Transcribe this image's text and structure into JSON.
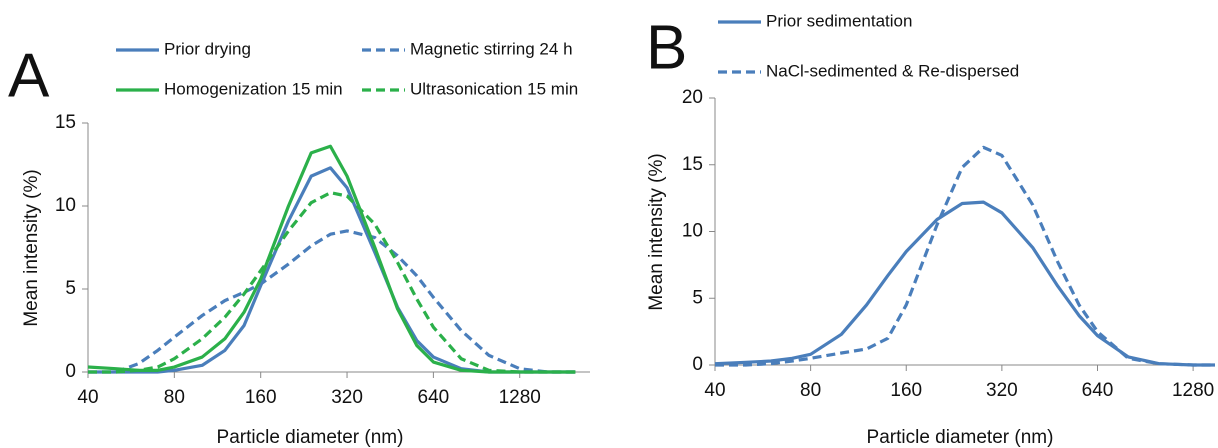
{
  "chart_data": [
    {
      "type": "line",
      "panel_label": "A",
      "x_label": "Particle diameter (nm)",
      "y_label": "Mean intensity (%)",
      "x_scale": "log",
      "xlim": [
        40,
        2250
      ],
      "xticks": [
        40,
        80,
        160,
        320,
        640,
        1280
      ],
      "ylim": [
        0,
        15
      ],
      "yticks": [
        0,
        5,
        10,
        15
      ],
      "grid": false,
      "legend_position": "top",
      "x": [
        40,
        50,
        60,
        70,
        80,
        100,
        120,
        140,
        160,
        200,
        240,
        280,
        320,
        400,
        480,
        560,
        640,
        800,
        1000,
        1280,
        1600,
        2000
      ],
      "series": [
        {
          "name": "Prior drying",
          "color": "#4a7ebb",
          "dashed": false,
          "values": [
            0,
            0,
            0,
            0,
            0.1,
            0.4,
            1.3,
            2.8,
            5.2,
            9.1,
            11.8,
            12.3,
            11.1,
            7.2,
            3.9,
            1.9,
            0.9,
            0.2,
            0,
            0,
            0,
            0
          ]
        },
        {
          "name": "Magnetic stirring 24 h",
          "color": "#4a7ebb",
          "dashed": true,
          "values": [
            0,
            0,
            0.5,
            1.3,
            2.1,
            3.4,
            4.3,
            4.8,
            5.3,
            6.5,
            7.6,
            8.3,
            8.5,
            8.1,
            7,
            5.8,
            4.5,
            2.5,
            1,
            0.2,
            0,
            0
          ]
        },
        {
          "name": "Homogenization 15 min",
          "color": "#2bb04a",
          "dashed": false,
          "values": [
            0.3,
            0.2,
            0.1,
            0.1,
            0.3,
            0.9,
            2,
            3.6,
            5.6,
            10,
            13.2,
            13.6,
            11.8,
            7.5,
            3.8,
            1.6,
            0.6,
            0.1,
            0,
            0,
            0,
            0
          ]
        },
        {
          "name": "Ultrasonication 15 min",
          "color": "#2bb04a",
          "dashed": true,
          "values": [
            0,
            0,
            0.1,
            0.3,
            0.8,
            2,
            3.3,
            4.7,
            6.1,
            8.5,
            10.2,
            10.8,
            10.6,
            8.9,
            6.6,
            4.4,
            2.7,
            0.8,
            0.1,
            0,
            0,
            0
          ]
        }
      ]
    },
    {
      "type": "line",
      "panel_label": "B",
      "x_label": "Particle diameter (nm)",
      "y_label": "Mean intensity (%)",
      "x_scale": "log",
      "xlim": [
        40,
        1500
      ],
      "xticks": [
        40,
        80,
        160,
        320,
        640,
        1280
      ],
      "ylim": [
        0,
        20
      ],
      "yticks": [
        0,
        5,
        10,
        15,
        20
      ],
      "grid": false,
      "legend_position": "top",
      "x": [
        40,
        50,
        60,
        70,
        80,
        100,
        120,
        140,
        160,
        200,
        240,
        280,
        320,
        400,
        480,
        560,
        640,
        800,
        1000,
        1280,
        1500
      ],
      "series": [
        {
          "name": "Prior sedimentation",
          "color": "#4a7ebb",
          "dashed": false,
          "values": [
            0.1,
            0.2,
            0.3,
            0.5,
            0.8,
            2.3,
            4.5,
            6.7,
            8.5,
            10.9,
            12.1,
            12.2,
            11.4,
            8.8,
            5.9,
            3.7,
            2.2,
            0.6,
            0.1,
            0,
            0
          ]
        },
        {
          "name": "NaCl-sedimented & Re-dispersed",
          "color": "#4a7ebb",
          "dashed": true,
          "values": [
            0,
            0,
            0.1,
            0.3,
            0.5,
            0.9,
            1.2,
            2,
            4.5,
            10.5,
            14.8,
            16.3,
            15.7,
            12,
            7.7,
            4.5,
            2.5,
            0.5,
            0.1,
            0,
            0
          ]
        }
      ]
    }
  ]
}
